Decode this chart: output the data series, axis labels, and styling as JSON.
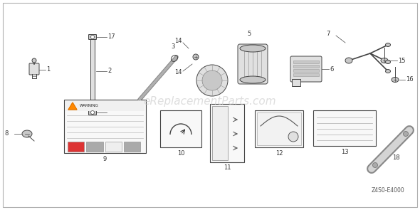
{
  "bg_color": "#ffffff",
  "border_color": "#b0b0b0",
  "watermark_text": "eReplacementParts.com",
  "watermark_color": "#c8c8c8",
  "diagram_code": "Z4S0-E4000",
  "label_fs": 6.0,
  "label_color": "#333333"
}
